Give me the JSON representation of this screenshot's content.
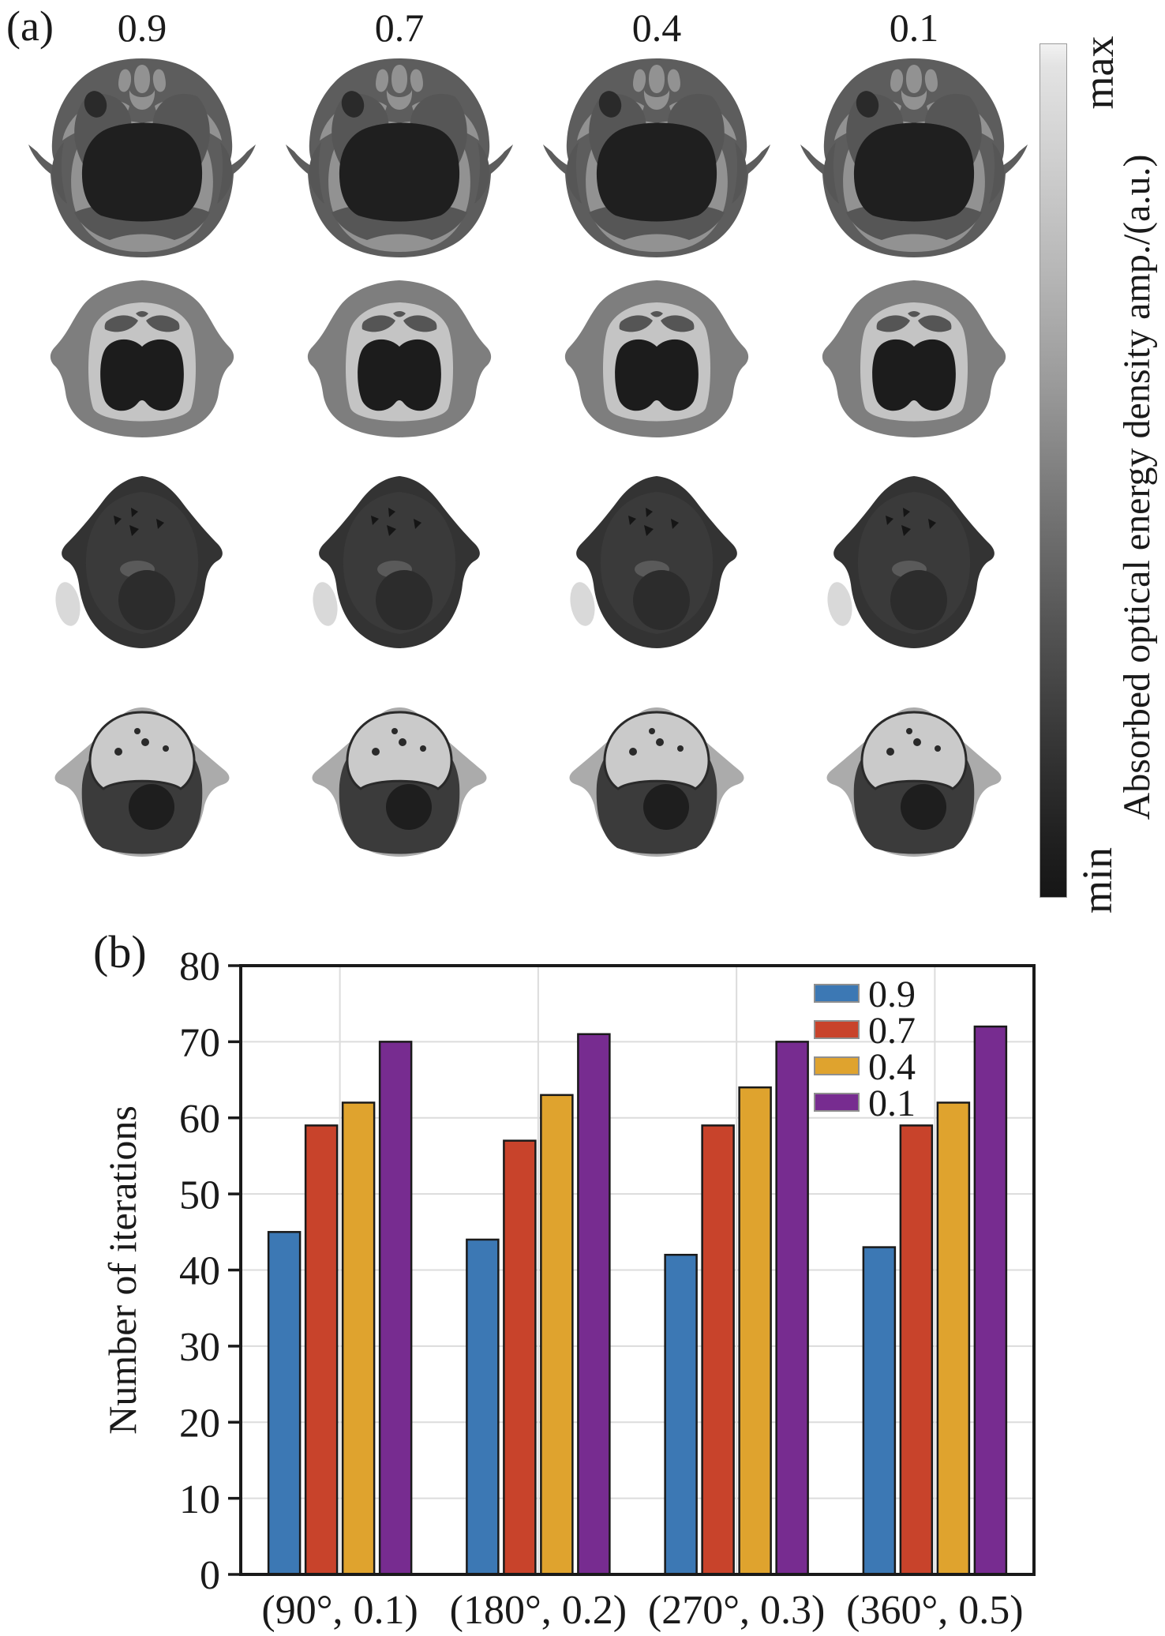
{
  "panel_a": {
    "label": "(a)",
    "columns": [
      "0.9",
      "0.7",
      "0.4",
      "0.1"
    ],
    "rows": [
      "head-slice",
      "neck-slice",
      "thorax-slice",
      "abdomen-slice"
    ],
    "colorbar": {
      "max_label": "max",
      "min_label": "min",
      "axis_label": "Absorbed optical energy density amp./(a.u.)",
      "top_color": "#f2f2f2",
      "bottom_color": "#161616"
    }
  },
  "panel_b": {
    "label": "(b)"
  },
  "chart_data": {
    "type": "bar",
    "title": "",
    "xlabel": "",
    "ylabel": "Number of iterations",
    "ylim": [
      0,
      80
    ],
    "ytick_step": 10,
    "grid": true,
    "legend_position": "top-right",
    "categories": [
      "(90°, 0.1)",
      "(180°, 0.2)",
      "(270°, 0.3)",
      "(360°, 0.5)"
    ],
    "series": [
      {
        "name": "0.9",
        "color": "#3C78B4",
        "values": [
          45,
          44,
          42,
          43
        ]
      },
      {
        "name": "0.7",
        "color": "#C8432B",
        "values": [
          59,
          57,
          59,
          59
        ]
      },
      {
        "name": "0.4",
        "color": "#DFA32E",
        "values": [
          62,
          63,
          64,
          62
        ]
      },
      {
        "name": "0.1",
        "color": "#772C90",
        "values": [
          70,
          71,
          70,
          72
        ]
      }
    ]
  }
}
